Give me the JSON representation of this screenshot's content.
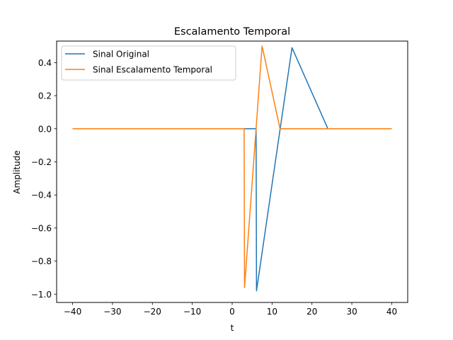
{
  "chart_data": {
    "type": "line",
    "title": "Escalamento Temporal",
    "xlabel": "t",
    "ylabel": "Amplitude",
    "xlim": [
      -44,
      44
    ],
    "ylim": [
      -1.05,
      0.53
    ],
    "xticks": [
      -40,
      -30,
      -20,
      -10,
      0,
      10,
      20,
      30,
      40
    ],
    "xtick_labels": [
      "−40",
      "−30",
      "−20",
      "−10",
      "0",
      "10",
      "20",
      "30",
      "40"
    ],
    "yticks": [
      -1.0,
      -0.8,
      -0.6,
      -0.4,
      -0.2,
      0.0,
      0.2,
      0.4
    ],
    "ytick_labels": [
      "−1.0",
      "−0.8",
      "−0.6",
      "−0.4",
      "−0.2",
      "0.0",
      "0.2",
      "0.4"
    ],
    "grid": false,
    "legend_position": "top-left",
    "series": [
      {
        "name": "Sinal Original",
        "color": "#1f77b4",
        "x": [
          -40,
          6.0,
          6.1,
          15.0,
          24.0,
          40
        ],
        "y": [
          0.0,
          0.0,
          -0.98,
          0.49,
          0.0,
          0.0
        ]
      },
      {
        "name": "Sinal Escalamento Temporal",
        "color": "#ff7f0e",
        "x": [
          -40,
          3.0,
          3.1,
          7.5,
          12.0,
          40
        ],
        "y": [
          0.0,
          0.0,
          -0.96,
          0.5,
          0.0,
          0.0
        ]
      }
    ]
  }
}
